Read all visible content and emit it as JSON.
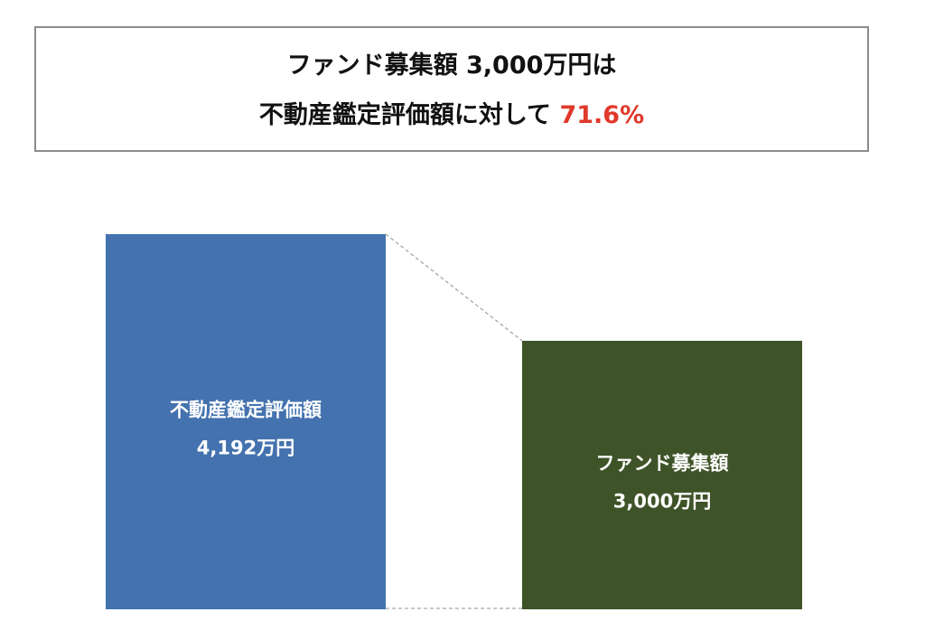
{
  "headline": {
    "line1": "ファンド募集額 3,000万円は",
    "line2_prefix": "不動産鑑定評価額に対して ",
    "ratio": "71.6%"
  },
  "colors": {
    "appraisal_bar": "#4472ae",
    "fund_bar": "#3f5328",
    "ratio_text": "#e0392b",
    "connector": "#a6a6a6"
  },
  "chart_data": {
    "type": "bar",
    "categories": [
      "不動産鑑定評価額",
      "ファンド募集額"
    ],
    "values": [
      4192,
      3000
    ],
    "value_labels": [
      "4,192万円",
      "3,000万円"
    ],
    "ylim": [
      0,
      4192
    ],
    "grid": false,
    "axes_visible": false,
    "connector_lines": true
  }
}
